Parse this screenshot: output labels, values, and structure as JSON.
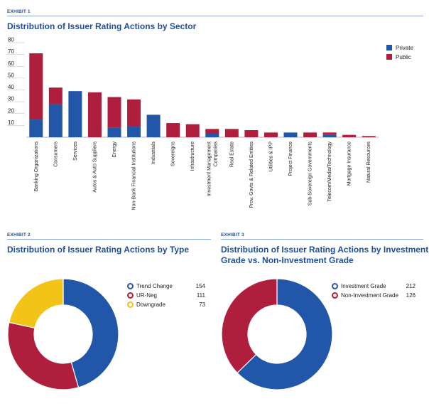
{
  "exhibit1": {
    "tag": "EXHIBIT 1",
    "title": "Distribution of Issuer Rating Actions by Sector"
  },
  "exhibit2": {
    "tag": "EXHIBIT 2",
    "title": "Distribution of Issuer Rating Actions by Type"
  },
  "exhibit3": {
    "tag": "EXHIBIT 3",
    "title_line1": "Distribution of Issuer Rating Actions by Investment",
    "title_line2": "Grade vs. Non-Investment Grade"
  },
  "colors": {
    "private": "#2256a8",
    "public": "#b01e3e",
    "downgrade": "#f2c418"
  },
  "chart_data": [
    {
      "type": "bar",
      "stacked": true,
      "title": "Distribution of Issuer Rating Actions by Sector",
      "categories": [
        "Banking Organizations",
        "Consumers",
        "Services",
        "Autos & Auto Suppliers",
        "Energy",
        "Non-Bank Financial Institutions",
        "Industrials",
        "Sovereigns",
        "Infrastructure",
        "Investment Management Companies",
        "Real Estate",
        "Prov. Govts & Related Entities",
        "Utilities & IPP",
        "Project Finance",
        "Sub-Sovereign Governments",
        "Telecom/Media/Technology",
        "Mortgage Insurance",
        "Natural Resources"
      ],
      "series": [
        {
          "name": "Private",
          "values": [
            15,
            28,
            39,
            0,
            8,
            9,
            19,
            0,
            0,
            3,
            0,
            0,
            0,
            4,
            0,
            2,
            0,
            0
          ]
        },
        {
          "name": "Public",
          "values": [
            56,
            14,
            0,
            38,
            26,
            23,
            0,
            12,
            11,
            4,
            7,
            6,
            4,
            0,
            4,
            2,
            2,
            1
          ]
        }
      ],
      "ylim": [
        0,
        80
      ],
      "yticks": [
        10,
        20,
        30,
        40,
        50,
        60,
        70,
        80
      ],
      "legend_position": "top-right"
    },
    {
      "type": "pie",
      "donut": true,
      "title": "Distribution of Issuer Rating Actions by Type",
      "labels": [
        "Trend Change",
        "UR-Neg",
        "Downgrade"
      ],
      "values": [
        154,
        111,
        73
      ],
      "colors": [
        "#2256a8",
        "#b01e3e",
        "#f2c418"
      ]
    },
    {
      "type": "pie",
      "donut": true,
      "title": "Distribution of Issuer Rating Actions by Investment Grade vs. Non-Investment Grade",
      "labels": [
        "Investment Grade",
        "Non-Investment Grade"
      ],
      "values": [
        212,
        126
      ],
      "colors": [
        "#2256a8",
        "#b01e3e"
      ]
    }
  ]
}
